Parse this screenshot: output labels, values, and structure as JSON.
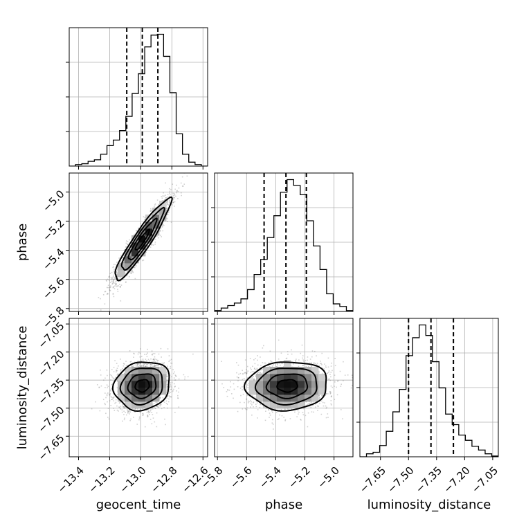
{
  "chart_data": {
    "type": "corner",
    "parameters": [
      "geocent_time",
      "phase",
      "luminosity_distance"
    ],
    "labels": {
      "geocent_time": "geocent_time",
      "phase": "phase",
      "luminosity_distance": "luminosity_distance"
    },
    "ranges": {
      "geocent_time": [
        -13.46,
        -12.57
      ],
      "phase": [
        -5.82,
        -4.87
      ],
      "luminosity_distance": [
        -7.76,
        -7.02
      ]
    },
    "ticks": {
      "geocent_time": [
        {
          "v": -13.4,
          "label": "−13.4"
        },
        {
          "v": -13.2,
          "label": "−13.2"
        },
        {
          "v": -13.0,
          "label": "−13.0"
        },
        {
          "v": -12.8,
          "label": "−12.8"
        },
        {
          "v": -12.6,
          "label": "−12.6"
        }
      ],
      "phase": [
        {
          "v": -5.8,
          "label": "−5.8"
        },
        {
          "v": -5.6,
          "label": "−5.6"
        },
        {
          "v": -5.4,
          "label": "−5.4"
        },
        {
          "v": -5.2,
          "label": "−5.2"
        },
        {
          "v": -5.0,
          "label": "−5.0"
        }
      ],
      "luminosity_distance": [
        {
          "v": -7.65,
          "label": "−7.65"
        },
        {
          "v": -7.5,
          "label": "−7.50"
        },
        {
          "v": -7.35,
          "label": "−7.35"
        },
        {
          "v": -7.2,
          "label": "−7.20"
        },
        {
          "v": -7.05,
          "label": "−7.05"
        }
      ]
    },
    "quantiles": {
      "geocent_time": [
        -13.09,
        -12.99,
        -12.89
      ],
      "phase": [
        -5.48,
        -5.33,
        -5.19
      ],
      "luminosity_distance": [
        -7.5,
        -7.38,
        -7.26
      ]
    },
    "histograms": {
      "geocent_time": {
        "bins": [
          -13.46,
          -12.57
        ],
        "counts": [
          0,
          2,
          3,
          6,
          8,
          15,
          26,
          33,
          45,
          63,
          92,
          117,
          151,
          166,
          167,
          139,
          93,
          41,
          15,
          5,
          2,
          0
        ]
      },
      "phase": {
        "bins": [
          -5.82,
          -4.87
        ],
        "counts": [
          1,
          4,
          7,
          10,
          15,
          26,
          44,
          62,
          88,
          114,
          142,
          157,
          150,
          139,
          108,
          78,
          50,
          21,
          9,
          6,
          1
        ]
      },
      "luminosity_distance": {
        "bins": [
          -7.76,
          -7.02
        ],
        "counts": [
          0,
          4,
          6,
          15,
          34,
          60,
          90,
          135,
          159,
          176,
          162,
          127,
          92,
          57,
          43,
          29,
          22,
          14,
          9,
          4,
          1
        ]
      }
    },
    "pairs": [
      {
        "x": "geocent_time",
        "y": "phase",
        "center": [
          -12.99,
          -5.33
        ],
        "sd": [
          0.09,
          0.14
        ],
        "rho": 0.93,
        "contour_levels": [
          "0.5σ",
          "1σ",
          "1.5σ",
          "2σ"
        ]
      },
      {
        "x": "geocent_time",
        "y": "luminosity_distance",
        "center": [
          -12.99,
          -7.38
        ],
        "sd": [
          0.09,
          0.065
        ],
        "rho": 0.12,
        "contour_levels": [
          "0.5σ",
          "1σ",
          "1.5σ",
          "2σ"
        ]
      },
      {
        "x": "phase",
        "y": "luminosity_distance",
        "center": [
          -5.32,
          -7.38
        ],
        "sd": [
          0.14,
          0.065
        ],
        "rho": 0.05,
        "contour_levels": [
          "0.5σ",
          "1σ",
          "1.5σ",
          "2σ"
        ]
      }
    ],
    "grid": true,
    "colors": {
      "line": "#000000",
      "grid": "#b0b0b0",
      "points": "#808080"
    }
  }
}
